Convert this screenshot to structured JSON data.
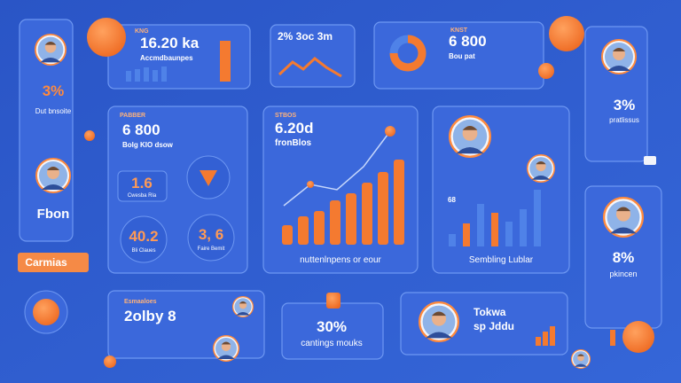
{
  "left_panel": {
    "stat": "3%",
    "caption": "Dut bnsoite",
    "name": "Fbon",
    "button": "Carmias"
  },
  "revenue_card": {
    "tag": "KNG",
    "value": "16.20 ka",
    "label": "Accmdbaunpes"
  },
  "trend_card": {
    "label": "2% 3oc 3m"
  },
  "donut_card": {
    "tag": "KNST",
    "value": "6 800",
    "label": "Bou pat"
  },
  "profile_right": {
    "stat": "3%",
    "label": "pratlissus"
  },
  "metrics_card": {
    "tag": "PABBER",
    "value": "6 800",
    "subtitle": "Bolg KIO dsow",
    "tiles": [
      {
        "value": "1.6",
        "label": "Cwesba Rla"
      },
      {
        "value": "40.2",
        "label": "Bli Claues"
      },
      {
        "value": "3, 6",
        "label": "Faire Bemit"
      }
    ]
  },
  "growth_card": {
    "tag": "STBOS",
    "value": "6.20d",
    "label": "fronBlos",
    "caption": "nuttenlnpens or eour"
  },
  "team_card": {
    "axis_label": "68",
    "caption": "Sembling Lublar"
  },
  "profile_right2": {
    "stat": "8%",
    "label": "pkincen"
  },
  "summary_card": {
    "tag": "Esmaaloes",
    "value": "2olby 8"
  },
  "percent_card": {
    "value": "30%",
    "label": "cantings mouks"
  },
  "person_card": {
    "title": "Tokwa",
    "subtitle": "sp Jddu"
  }
}
